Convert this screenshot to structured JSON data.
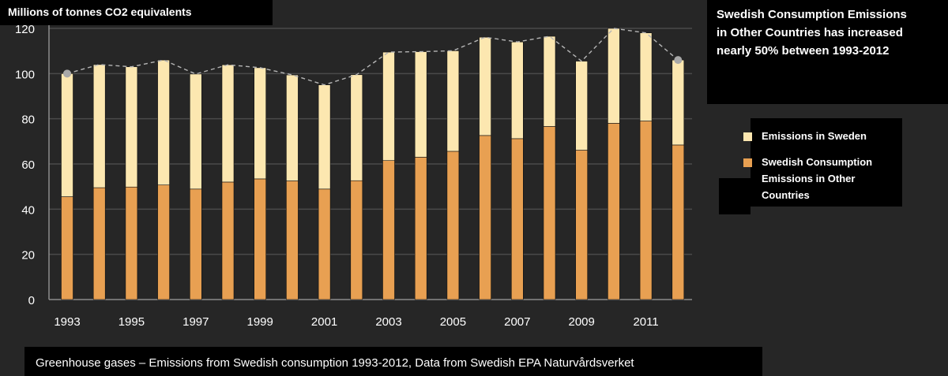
{
  "chart_data": {
    "type": "bar",
    "stacked": true,
    "categories": [
      "1993",
      "1994",
      "1995",
      "1996",
      "1997",
      "1998",
      "1999",
      "2000",
      "2001",
      "2002",
      "2003",
      "2004",
      "2005",
      "2006",
      "2007",
      "2008",
      "2009",
      "2010",
      "2011",
      "2012"
    ],
    "tick_labels": [
      "1993",
      "1995",
      "1997",
      "1999",
      "2001",
      "2003",
      "2005",
      "2007",
      "2009",
      "2011"
    ],
    "series": [
      {
        "name": "Swedish Consumption Emissions in Other Countries",
        "color": "#E8A052",
        "values": [
          45.5,
          49.5,
          49.8,
          50.7,
          48.9,
          52.0,
          53.4,
          52.5,
          48.9,
          52.6,
          61.5,
          63.0,
          65.6,
          72.6,
          71.2,
          76.6,
          66.1,
          78.0,
          79.0,
          68.4
        ]
      },
      {
        "name": "Emissions in Sweden",
        "color": "#FCE7B0",
        "values": [
          54.5,
          54.5,
          53.2,
          55.3,
          50.9,
          51.9,
          49.2,
          46.9,
          46.1,
          46.9,
          48.0,
          46.7,
          44.5,
          43.5,
          42.8,
          39.9,
          39.4,
          42.0,
          39.0,
          37.6
        ]
      }
    ],
    "trend": {
      "values": [
        100.0,
        104.0,
        103.0,
        106.0,
        99.8,
        103.9,
        102.6,
        99.4,
        95.0,
        99.5,
        109.5,
        109.7,
        110.1,
        116.1,
        114.0,
        116.5,
        105.5,
        120.0,
        118.0,
        106.0
      ],
      "marked_points": [
        0,
        19
      ],
      "style": "dashed"
    },
    "ylim": [
      0,
      120
    ],
    "yticks": [
      0,
      20,
      40,
      60,
      80,
      100,
      120
    ],
    "ylabel": "Millions of tonnes CO2 equivalents",
    "grid": true
  },
  "labels": {
    "ylabel": "Millions of tonnes CO2 equivalents",
    "annotation": [
      "Swedish Consumption  Emissions",
      "in Other Countries has increased",
      "nearly 50% between 1993-2012"
    ],
    "legend": {
      "sweden": "Emissions in Sweden",
      "other_line1": "Swedish Consumption",
      "other_line2": "Emissions in Other",
      "other_line3": "Countries"
    },
    "footer": "Greenhouse  gases – Emissions from Swedish consumption 1993-2012, Data from Swedish EPA Naturvårdsverket"
  },
  "colors": {
    "background": "#262626",
    "gridline": "#4A4A4A",
    "axis": "#8C8C8C",
    "trend_line": "#B5B5B5",
    "marker": "#A8A8A8"
  }
}
